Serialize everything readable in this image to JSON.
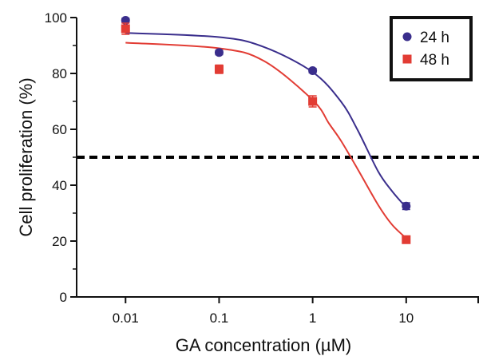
{
  "chart_data": {
    "type": "scatter",
    "xlabel": "GA concentration (µM)",
    "ylabel": "Cell proliferation (%)",
    "x_scale": "log",
    "xlim": [
      0.003,
      60
    ],
    "ylim": [
      0,
      100
    ],
    "x_ticks": [
      0.01,
      0.1,
      1,
      10
    ],
    "x_tick_labels": [
      "0.01",
      "0.1",
      "1",
      "10"
    ],
    "y_ticks": [
      0,
      20,
      40,
      60,
      80,
      100
    ],
    "y_tick_labels": [
      "0",
      "20",
      "40",
      "60",
      "80",
      "100"
    ],
    "reference_line": {
      "y": 50,
      "style": "dashed",
      "color": "#000000"
    },
    "legend": {
      "placement": "top-right"
    },
    "series": [
      {
        "name": "24 h",
        "marker": "circle",
        "color": "#3a2e8c",
        "x": [
          0.01,
          0.1,
          1,
          10
        ],
        "y": [
          99,
          87.5,
          81,
          32.5
        ],
        "error": [
          0.8,
          0.8,
          0.8,
          1.2
        ],
        "fit_curve": [
          [
            0.01,
            94.5
          ],
          [
            0.1,
            93.0
          ],
          [
            0.3,
            89.5
          ],
          [
            1,
            80.5
          ],
          [
            2,
            70
          ],
          [
            3,
            60
          ],
          [
            5,
            45
          ],
          [
            7,
            38
          ],
          [
            10,
            32
          ]
        ]
      },
      {
        "name": "48 h",
        "marker": "square",
        "color": "#e23c34",
        "x": [
          0.01,
          0.1,
          1,
          10
        ],
        "y": [
          96,
          81.5,
          70,
          20.5
        ],
        "error": [
          2.0,
          1.5,
          2.0,
          0.8
        ],
        "fit_curve": [
          [
            0.01,
            91.0
          ],
          [
            0.1,
            89.0
          ],
          [
            0.3,
            84.5
          ],
          [
            1,
            70.5
          ],
          [
            1.5,
            62
          ],
          [
            2,
            56
          ],
          [
            3,
            46
          ],
          [
            5,
            33
          ],
          [
            7,
            26
          ],
          [
            10,
            21
          ]
        ]
      }
    ]
  }
}
